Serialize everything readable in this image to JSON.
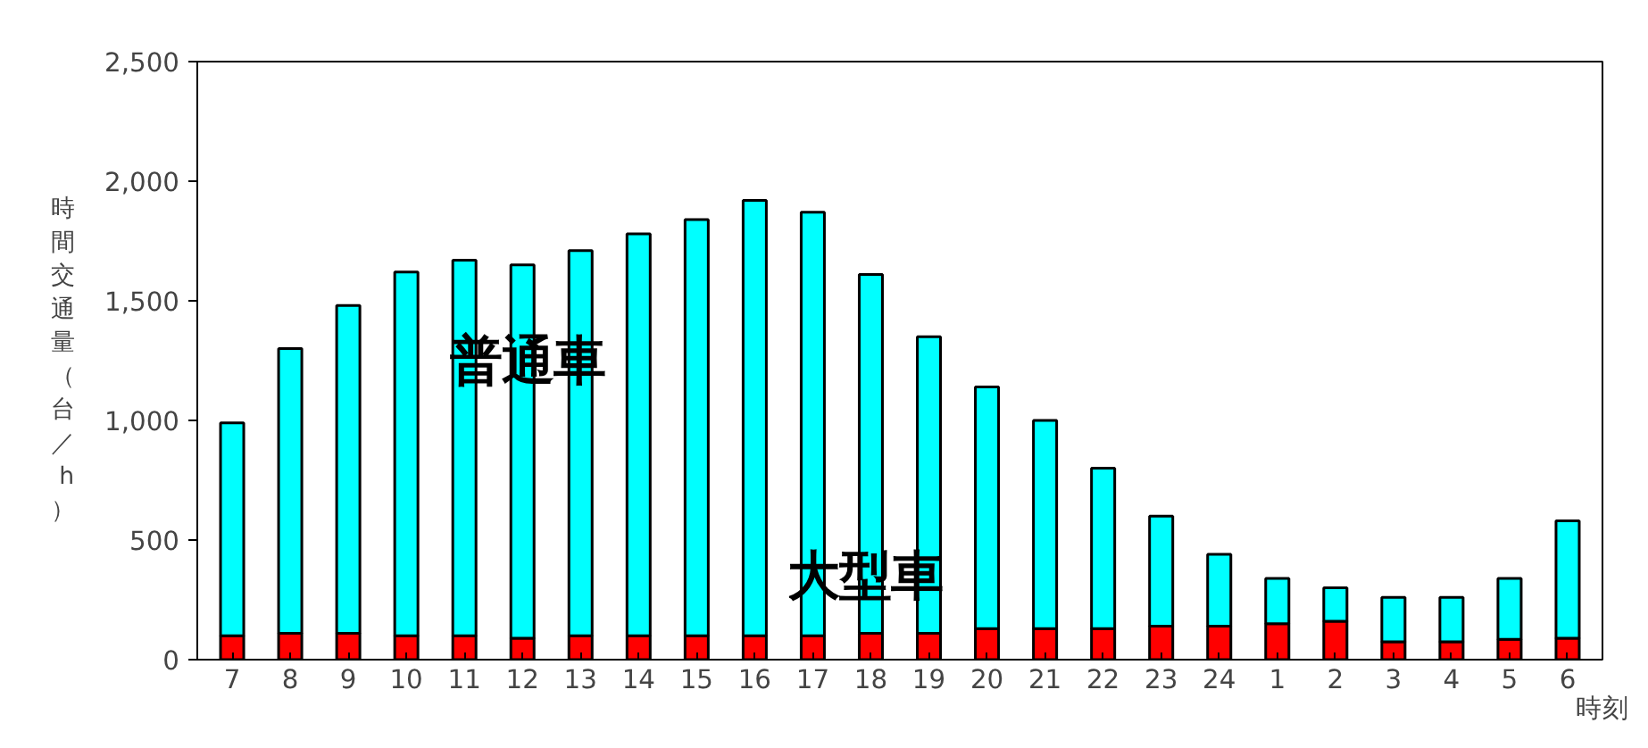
{
  "chart_data": {
    "type": "bar",
    "stacked": true,
    "ylabel": "時間交通量（台／h）",
    "xlabel": "時刻",
    "categories": [
      "7",
      "8",
      "9",
      "10",
      "11",
      "12",
      "13",
      "14",
      "15",
      "16",
      "17",
      "18",
      "19",
      "20",
      "21",
      "22",
      "23",
      "24",
      "1",
      "2",
      "3",
      "4",
      "5",
      "6"
    ],
    "series": [
      {
        "color": "#ff0000",
        "values": [
          100,
          110,
          110,
          100,
          100,
          90,
          100,
          100,
          100,
          100,
          100,
          110,
          110,
          130,
          130,
          130,
          140,
          140,
          150,
          160,
          75,
          75,
          85,
          90
        ]
      },
      {
        "color": "#00ffff",
        "values": [
          890,
          1190,
          1370,
          1520,
          1570,
          1560,
          1610,
          1680,
          1740,
          1820,
          1770,
          1500,
          1240,
          1010,
          870,
          670,
          460,
          300,
          190,
          140,
          185,
          185,
          255,
          490
        ]
      }
    ],
    "ylim": [
      0,
      2500
    ],
    "yticks": [
      0,
      {
        "value": 500,
        "label": "500"
      },
      {
        "value": 1000,
        "label": "1,000"
      },
      {
        "value": 1500,
        "label": "1,500"
      },
      {
        "value": 2000,
        "label": "2,000"
      },
      {
        "value": 2500,
        "label": "2,500"
      }
    ],
    "grid": false,
    "annotations": [
      "普通車",
      "大型車"
    ]
  }
}
